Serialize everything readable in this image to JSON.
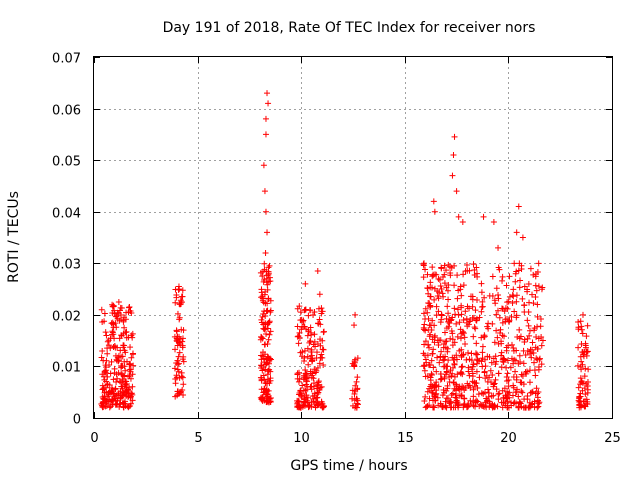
{
  "chart_data": {
    "type": "scatter",
    "title": "Day 191 of 2018, Rate Of TEC Index for receiver nors",
    "xlabel": "GPS time / hours",
    "ylabel": "ROTI / TECUs",
    "xlim": [
      0,
      25
    ],
    "ylim": [
      0,
      0.07
    ],
    "xticks": [
      0,
      5,
      10,
      15,
      20,
      25
    ],
    "xtick_labels": [
      "0",
      "5",
      "10",
      "15",
      "20",
      "25"
    ],
    "yticks": [
      0,
      0.01,
      0.02,
      0.03,
      0.04,
      0.05,
      0.06,
      0.07
    ],
    "ytick_labels": [
      "0",
      "0.01",
      "0.02",
      "0.03",
      "0.04",
      "0.05",
      "0.06",
      "0.07"
    ],
    "grid": true,
    "marker": "plus",
    "series": [
      {
        "name": "ROTI",
        "color": "#ff0000",
        "clusters": [
          {
            "x": [
              0.35,
              1.9
            ],
            "y": [
              0.002,
              0.022
            ],
            "count": 260,
            "peak": [
              [
                1.2,
                0.0225
              ],
              [
                0.6,
                0.016
              ]
            ]
          },
          {
            "x": [
              3.9,
              4.35
            ],
            "y": [
              0.004,
              0.025
            ],
            "count": 70,
            "peak": [
              [
                4.1,
                0.0255
              ]
            ]
          },
          {
            "x": [
              8.05,
              8.55
            ],
            "y": [
              0.003,
              0.03
            ],
            "count": 150,
            "peak": [
              [
                8.35,
                0.063
              ],
              [
                8.4,
                0.061
              ],
              [
                8.3,
                0.055
              ],
              [
                8.2,
                0.049
              ],
              [
                8.25,
                0.044
              ],
              [
                8.3,
                0.04
              ],
              [
                8.35,
                0.036
              ],
              [
                8.28,
                0.032
              ],
              [
                8.3,
                0.058
              ]
            ]
          },
          {
            "x": [
              9.8,
              11.1
            ],
            "y": [
              0.002,
              0.022
            ],
            "count": 200,
            "peak": [
              [
                10.2,
                0.026
              ],
              [
                10.8,
                0.0285
              ],
              [
                10.9,
                0.024
              ]
            ]
          },
          {
            "x": [
              12.45,
              12.75
            ],
            "y": [
              0.002,
              0.012
            ],
            "count": 28,
            "peak": [
              [
                12.6,
                0.02
              ],
              [
                12.55,
                0.018
              ]
            ]
          },
          {
            "x": [
              15.9,
              17.9
            ],
            "y": [
              0.002,
              0.03
            ],
            "count": 320,
            "peak": [
              [
                17.4,
                0.0545
              ],
              [
                17.35,
                0.051
              ],
              [
                17.3,
                0.047
              ],
              [
                16.4,
                0.042
              ],
              [
                16.45,
                0.04
              ],
              [
                17.5,
                0.044
              ],
              [
                17.6,
                0.039
              ],
              [
                17.8,
                0.038
              ]
            ]
          },
          {
            "x": [
              17.9,
              21.7
            ],
            "y": [
              0.002,
              0.03
            ],
            "count": 420,
            "peak": [
              [
                18.8,
                0.039
              ],
              [
                19.3,
                0.038
              ],
              [
                20.5,
                0.041
              ],
              [
                20.4,
                0.036
              ],
              [
                20.7,
                0.035
              ],
              [
                19.5,
                0.033
              ],
              [
                21.4,
                0.022
              ]
            ]
          },
          {
            "x": [
              23.35,
              23.85
            ],
            "y": [
              0.002,
              0.019
            ],
            "count": 70,
            "peak": [
              [
                23.6,
                0.02
              ]
            ]
          }
        ]
      }
    ]
  }
}
